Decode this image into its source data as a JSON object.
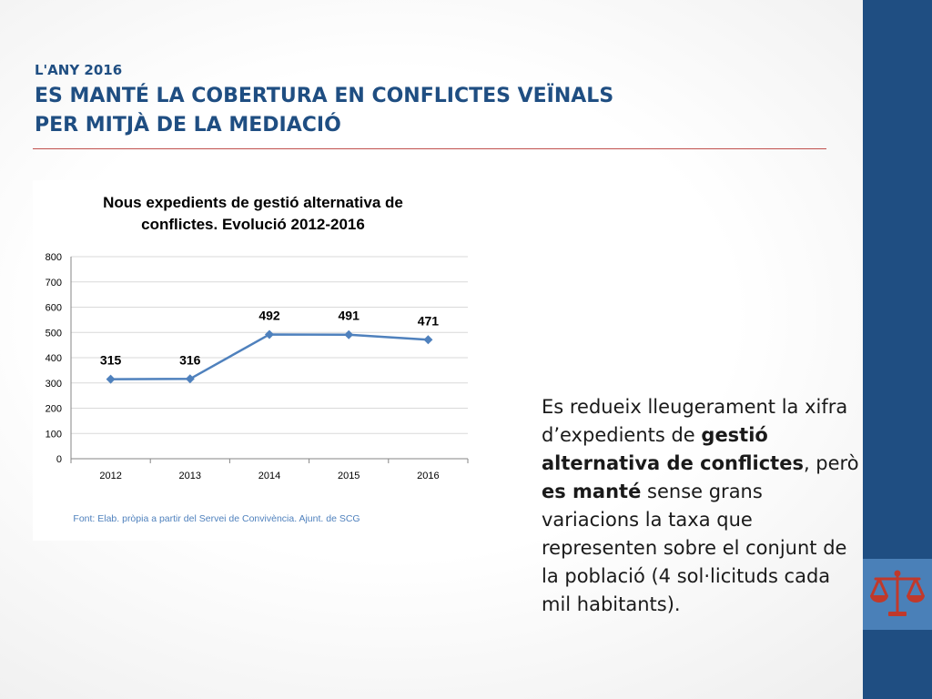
{
  "header": {
    "year_label": "L'ANY 2016",
    "title_line1": "ES MANTÉ LA COBERTURA EN CONFLICTES VEÏNALS",
    "title_line2": "PER MITJÀ DE LA MEDIACIÓ"
  },
  "chart_data": {
    "type": "line",
    "title_line1": "Nous expedients de gestió alternativa de",
    "title_line2": "conflictes. Evolució 2012-2016",
    "categories": [
      "2012",
      "2013",
      "2014",
      "2015",
      "2016"
    ],
    "values": [
      315,
      316,
      492,
      491,
      471
    ],
    "ylim": [
      0,
      800
    ],
    "yticks": [
      "0",
      "100",
      "200",
      "300",
      "400",
      "500",
      "600",
      "700",
      "800"
    ],
    "grid": true,
    "series_color": "#4f81bd",
    "source": "Font: Elab. pròpia a partir del Servei de Convivència. Ajunt. de SCG"
  },
  "body": {
    "p1": "Es redueix lleugerament la xifra d’expedients de ",
    "p1_bold": "gestió alternativa de conflictes",
    "p2": ", però ",
    "p2_bold": "es manté",
    "p3": " sense grans variacions la taxa que representen sobre el conjunt de la població (4 sol·licituds cada mil habitants)."
  },
  "colors": {
    "sidebar": "#1f4e82",
    "icon_box": "#4a80b8",
    "icon": "#c0392b",
    "title": "#1f4e82",
    "rule": "#c0504d"
  },
  "icons": {
    "sidebar_icon": "scales-of-justice-icon"
  }
}
